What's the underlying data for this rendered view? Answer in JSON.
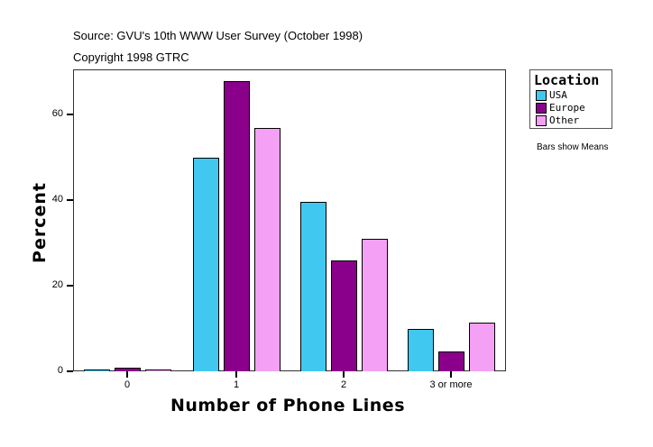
{
  "header": {
    "source": "Source: GVU's 10th WWW User Survey (October 1998)",
    "copyright": "Copyright 1998 GTRC"
  },
  "legend": {
    "title": "Location",
    "items": [
      {
        "label": "USA",
        "color": "#40C8F0"
      },
      {
        "label": "Europe",
        "color": "#8B008B"
      },
      {
        "label": "Other",
        "color": "#F4A0F4"
      }
    ]
  },
  "note": "Bars show Means",
  "axes": {
    "y_ticks": [
      "0",
      "20",
      "40",
      "60"
    ],
    "x_ticks": [
      "0",
      "1",
      "2",
      "3 or more"
    ],
    "ylabel": "Percent",
    "xlabel": "Number of Phone Lines"
  },
  "chart_data": {
    "type": "bar",
    "title": "",
    "subtitle": "Source: GVU's 10th WWW User Survey (October 1998); Copyright 1998 GTRC",
    "categories": [
      "0",
      "1",
      "2",
      "3 or more"
    ],
    "series": [
      {
        "name": "USA",
        "color": "#40C8F0",
        "values": [
          0.2,
          50.0,
          39.6,
          9.8
        ]
      },
      {
        "name": "Europe",
        "color": "#8B008B",
        "values": [
          0.8,
          67.8,
          26.0,
          4.6
        ]
      },
      {
        "name": "Other",
        "color": "#F4A0F4",
        "values": [
          0.4,
          56.9,
          30.9,
          11.3
        ]
      }
    ],
    "xlabel": "Number of Phone Lines",
    "ylabel": "Percent",
    "ylim": [
      0,
      70
    ],
    "y_ticks": [
      0,
      20,
      40,
      60
    ],
    "grid": false,
    "legend_title": "Location",
    "legend_position": "right",
    "annotations": [
      "Bars show Means"
    ]
  }
}
